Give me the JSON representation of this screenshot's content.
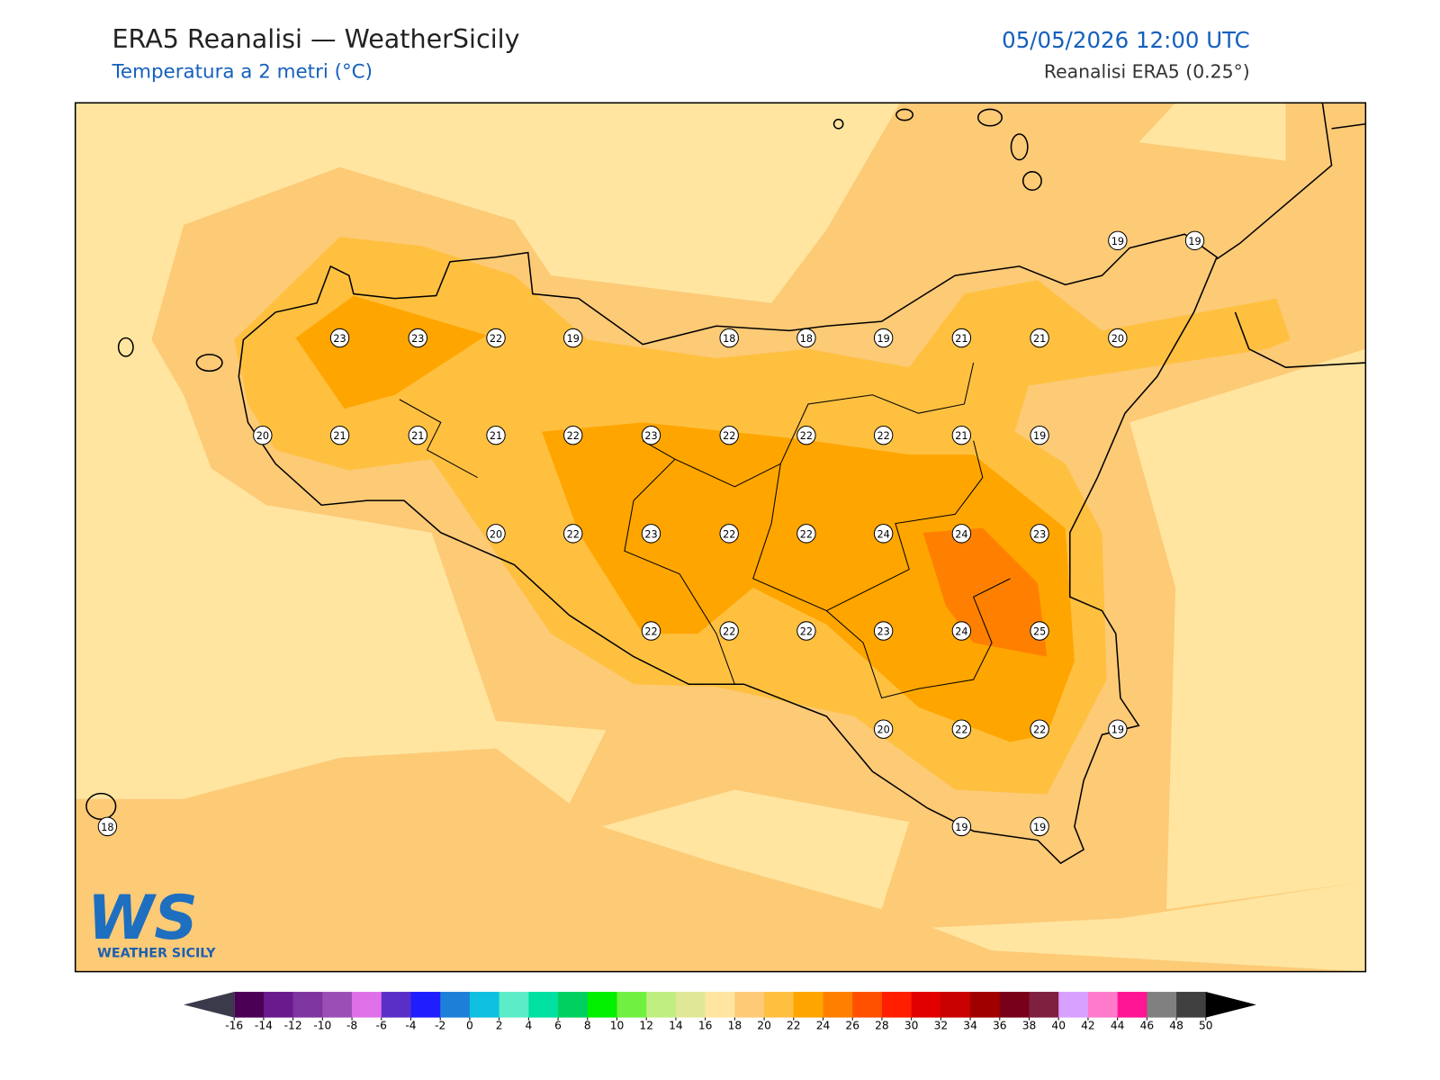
{
  "header": {
    "title": "ERA5 Reanalisi — WeatherSicily",
    "subtitle": "Temperatura a 2 metri (°C)",
    "datetime": "05/05/2026 12:00 UTC",
    "source": "Reanalisi ERA5 (0.25°)"
  },
  "stations": [
    19,
    19,
    23,
    23,
    22,
    19,
    18,
    18,
    19,
    21,
    21,
    20,
    20,
    21,
    21,
    21,
    22,
    23,
    22,
    22,
    22,
    21,
    19,
    20,
    22,
    23,
    22,
    22,
    24,
    24,
    23,
    22,
    22,
    22,
    23,
    24,
    25,
    20,
    22,
    22,
    19,
    18,
    19,
    19
  ],
  "colorbar": {
    "ticks": [
      -16,
      -14,
      -12,
      -10,
      -8,
      -6,
      -4,
      -2,
      0,
      2,
      4,
      6,
      8,
      10,
      12,
      14,
      16,
      18,
      20,
      22,
      24,
      26,
      28,
      30,
      32,
      34,
      36,
      38,
      40,
      42,
      44,
      46,
      48,
      50
    ],
    "colors": [
      "#4b0055",
      "#6a1a8c",
      "#7f35a0",
      "#9b4fb6",
      "#e070e8",
      "#5a2fc8",
      "#1e1eff",
      "#1e7fd8",
      "#10c0e0",
      "#5cecc8",
      "#00e0a0",
      "#00d060",
      "#00f000",
      "#70f040",
      "#c0ee80",
      "#e0e898",
      "#ffe5a0",
      "#fdca76",
      "#ffc040",
      "#ffa500",
      "#ff8000",
      "#ff5000",
      "#ff1e00",
      "#e00000",
      "#c80000",
      "#a00000",
      "#780018",
      "#802040",
      "#d8a0ff",
      "#ff7acb",
      "#ff1493",
      "#808080",
      "#404040"
    ],
    "under_color": "#3a3a4a",
    "over_color": "#000000"
  },
  "logo": {
    "initials": "WS",
    "name": "WEATHER SICILY"
  }
}
